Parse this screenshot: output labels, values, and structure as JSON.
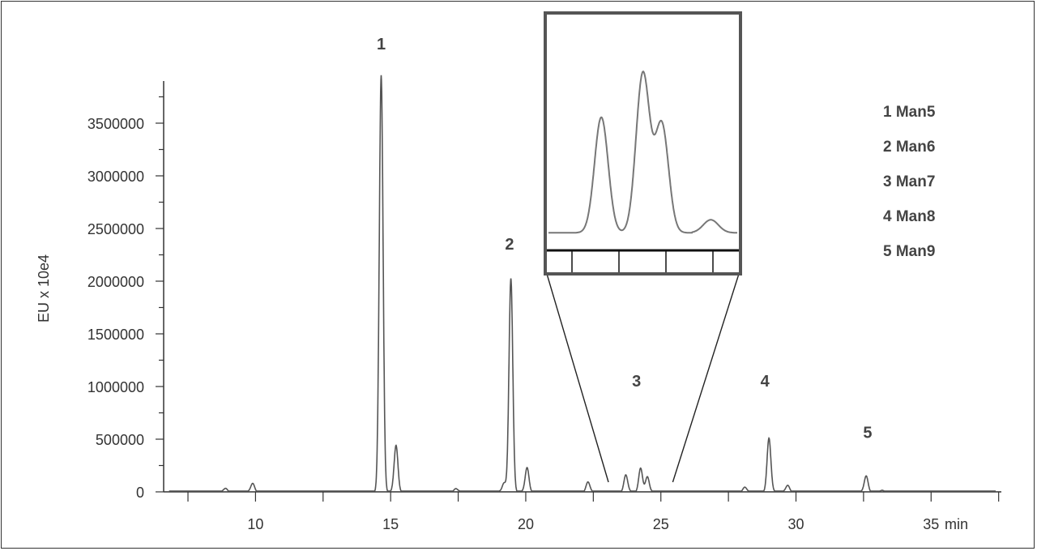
{
  "chart_data": {
    "type": "line",
    "ylabel": "EU x 10e4",
    "xlabel": "min",
    "xlim": [
      6.6,
      37.6
    ],
    "ylim": [
      0,
      3900000
    ],
    "x_ticks": [
      10,
      15,
      20,
      25,
      30,
      35
    ],
    "x_tick_labels": [
      "10",
      "15",
      "20",
      "25",
      "30",
      "35"
    ],
    "y_ticks": [
      0,
      500000,
      1000000,
      1500000,
      2000000,
      2500000,
      3000000,
      3500000
    ],
    "y_tick_labels": [
      "0",
      "500000",
      "1000000",
      "1500000",
      "2000000",
      "2500000",
      "3000000",
      "3500000"
    ],
    "peaks": [
      {
        "x": 8.9,
        "y": 30000
      },
      {
        "x": 9.9,
        "y": 80000
      },
      {
        "x": 14.65,
        "y": 3950000
      },
      {
        "x": 15.2,
        "y": 440000
      },
      {
        "x": 17.4,
        "y": 30000
      },
      {
        "x": 19.2,
        "y": 90000
      },
      {
        "x": 19.45,
        "y": 2020000
      },
      {
        "x": 20.05,
        "y": 230000
      },
      {
        "x": 22.3,
        "y": 90000
      },
      {
        "x": 23.7,
        "y": 160000
      },
      {
        "x": 24.25,
        "y": 220000
      },
      {
        "x": 24.5,
        "y": 150000
      },
      {
        "x": 28.1,
        "y": 40000
      },
      {
        "x": 29.0,
        "y": 510000
      },
      {
        "x": 29.7,
        "y": 60000
      },
      {
        "x": 32.6,
        "y": 150000
      },
      {
        "x": 33.2,
        "y": 20000
      }
    ],
    "peak_labels": [
      {
        "text": "1",
        "x": 14.65,
        "y": 4200000
      },
      {
        "text": "2",
        "x": 19.4,
        "y": 2300000
      },
      {
        "text": "3",
        "x": 24.1,
        "y": 1000000
      },
      {
        "text": "4",
        "x": 28.85,
        "y": 1000000
      },
      {
        "text": "5",
        "x": 32.65,
        "y": 510000
      }
    ],
    "legend": [
      "1 Man5",
      "2 Man6",
      "3 Man7",
      "4 Man8",
      "5 Man9"
    ],
    "inset": {
      "zoom_range_x": [
        23.0,
        25.5
      ],
      "peaks": [
        {
          "x": 23.7,
          "y": 160000
        },
        {
          "x": 24.25,
          "y": 220000
        },
        {
          "x": 24.5,
          "y": 150000
        }
      ]
    }
  }
}
